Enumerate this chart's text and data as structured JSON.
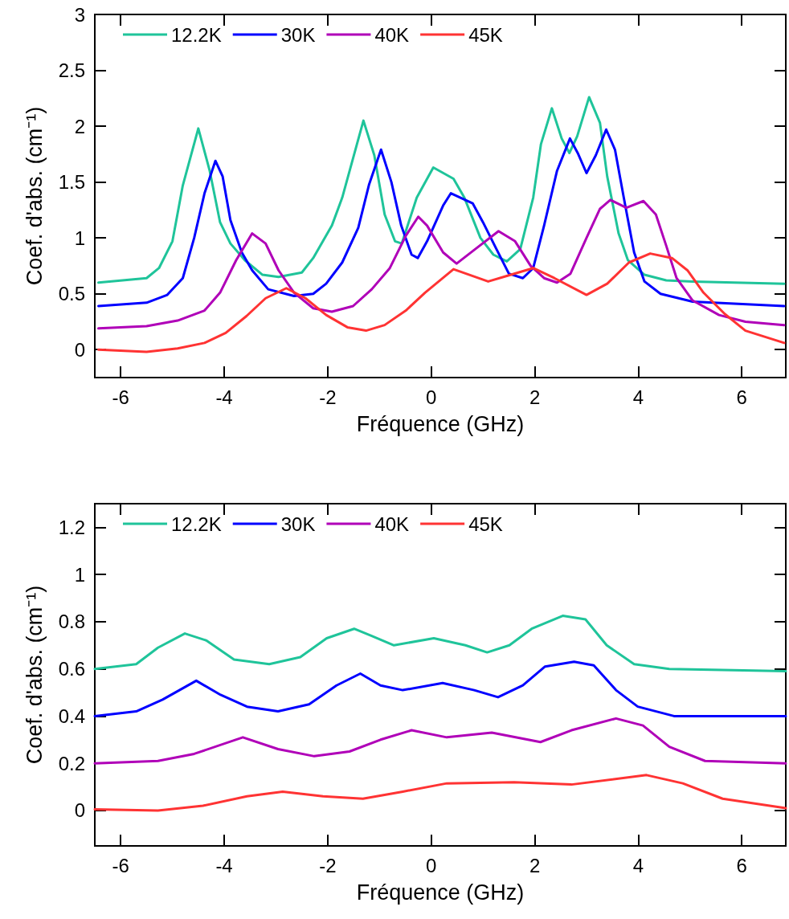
{
  "chart_data": [
    {
      "type": "line",
      "xlabel": "Fréquence (GHz)",
      "ylabel": "Coef. d'abs. (cm⁻¹)",
      "xlim": [
        -6.5,
        6.85
      ],
      "ylim": [
        -0.25,
        3
      ],
      "xticks": [
        -6,
        -4,
        -2,
        0,
        2,
        4,
        6
      ],
      "yticks": [
        0,
        0.5,
        1,
        1.5,
        2,
        2.5,
        3
      ],
      "legend": "top left",
      "grid": false,
      "marker": "none",
      "series": [
        {
          "name": "12.2K",
          "color": "#1fc49a",
          "x": [
            -6.43,
            -5.5,
            -5.26,
            -5.0,
            -4.8,
            -4.5,
            -4.28,
            -4.08,
            -3.88,
            -3.6,
            -3.26,
            -2.95,
            -2.5,
            -2.28,
            -1.92,
            -1.72,
            -1.31,
            -1.1,
            -0.9,
            -0.7,
            -0.57,
            -0.28,
            0.04,
            0.43,
            0.64,
            0.95,
            1.2,
            1.46,
            1.72,
            1.97,
            2.12,
            2.33,
            2.52,
            2.67,
            2.82,
            3.05,
            3.26,
            3.4,
            3.62,
            3.8,
            4.12,
            4.54,
            5.05,
            6.82
          ],
          "values": [
            0.6,
            0.64,
            0.73,
            0.97,
            1.47,
            1.98,
            1.6,
            1.14,
            0.95,
            0.8,
            0.67,
            0.65,
            0.69,
            0.82,
            1.11,
            1.36,
            2.05,
            1.74,
            1.21,
            0.97,
            0.95,
            1.36,
            1.63,
            1.53,
            1.36,
            1.0,
            0.85,
            0.79,
            0.9,
            1.36,
            1.84,
            2.16,
            1.89,
            1.76,
            1.91,
            2.26,
            2.03,
            1.55,
            1.04,
            0.8,
            0.67,
            0.62,
            0.61,
            0.59
          ]
        },
        {
          "name": "30K",
          "color": "#0000ff",
          "x": [
            -6.43,
            -5.5,
            -5.1,
            -4.8,
            -4.58,
            -4.38,
            -4.17,
            -4.03,
            -3.88,
            -3.66,
            -3.46,
            -3.15,
            -2.65,
            -2.28,
            -2.03,
            -1.72,
            -1.41,
            -1.2,
            -0.97,
            -0.77,
            -0.58,
            -0.38,
            -0.26,
            -0.08,
            0.23,
            0.38,
            0.8,
            1.0,
            1.26,
            1.5,
            1.77,
            1.97,
            2.18,
            2.43,
            2.68,
            2.83,
            3.0,
            3.18,
            3.38,
            3.55,
            3.72,
            3.92,
            4.12,
            4.43,
            5.05,
            6.82
          ],
          "values": [
            0.39,
            0.42,
            0.49,
            0.64,
            1.0,
            1.4,
            1.69,
            1.55,
            1.16,
            0.87,
            0.71,
            0.54,
            0.48,
            0.5,
            0.59,
            0.78,
            1.09,
            1.48,
            1.79,
            1.5,
            1.11,
            0.85,
            0.82,
            0.97,
            1.29,
            1.4,
            1.31,
            1.14,
            0.9,
            0.68,
            0.64,
            0.73,
            1.11,
            1.6,
            1.89,
            1.76,
            1.58,
            1.74,
            1.97,
            1.79,
            1.36,
            0.87,
            0.61,
            0.5,
            0.43,
            0.39
          ]
        },
        {
          "name": "40K",
          "color": "#b000b8",
          "x": [
            -6.43,
            -5.5,
            -4.9,
            -4.38,
            -4.08,
            -3.77,
            -3.46,
            -3.2,
            -2.95,
            -2.65,
            -2.28,
            -1.92,
            -1.51,
            -1.15,
            -0.8,
            -0.49,
            -0.25,
            -0.08,
            0.23,
            0.49,
            0.85,
            1.3,
            1.62,
            1.92,
            2.18,
            2.43,
            2.69,
            3.0,
            3.26,
            3.46,
            3.77,
            4.1,
            4.34,
            4.54,
            4.74,
            5.05,
            5.56,
            6.07,
            6.82
          ],
          "values": [
            0.19,
            0.21,
            0.26,
            0.35,
            0.51,
            0.8,
            1.04,
            0.95,
            0.71,
            0.51,
            0.37,
            0.34,
            0.39,
            0.54,
            0.73,
            1.02,
            1.19,
            1.11,
            0.87,
            0.77,
            0.9,
            1.06,
            0.97,
            0.75,
            0.64,
            0.6,
            0.68,
            1.0,
            1.26,
            1.34,
            1.27,
            1.33,
            1.21,
            0.93,
            0.64,
            0.44,
            0.31,
            0.25,
            0.22
          ]
        },
        {
          "name": "45K",
          "color": "#ff3333",
          "x": [
            -6.43,
            -5.5,
            -4.9,
            -4.38,
            -3.97,
            -3.57,
            -3.2,
            -2.8,
            -2.43,
            -2.03,
            -1.62,
            -1.26,
            -0.9,
            -0.49,
            -0.12,
            0.43,
            1.1,
            1.46,
            1.97,
            2.38,
            3.0,
            3.4,
            3.82,
            4.23,
            4.65,
            4.95,
            5.26,
            5.67,
            6.07,
            6.82
          ],
          "values": [
            0.0,
            -0.02,
            0.01,
            0.06,
            0.15,
            0.3,
            0.46,
            0.55,
            0.46,
            0.31,
            0.2,
            0.17,
            0.22,
            0.35,
            0.51,
            0.72,
            0.61,
            0.66,
            0.73,
            0.64,
            0.49,
            0.59,
            0.78,
            0.86,
            0.82,
            0.71,
            0.51,
            0.32,
            0.17,
            0.06
          ]
        }
      ]
    },
    {
      "type": "line",
      "xlabel": "Fréquence (GHz)",
      "ylabel": "Coef. d'abs. (cm⁻¹)",
      "xlim": [
        -6.5,
        6.85
      ],
      "ylim": [
        -0.15,
        1.3
      ],
      "xticks": [
        -6,
        -4,
        -2,
        0,
        2,
        4,
        6
      ],
      "yticks": [
        0,
        0.2,
        0.4,
        0.6,
        0.8,
        1,
        1.2
      ],
      "legend": "top left",
      "grid": false,
      "marker": "none",
      "series": [
        {
          "name": "12.2K",
          "color": "#1fc49a",
          "x": [
            -6.5,
            -5.7,
            -5.28,
            -4.76,
            -4.34,
            -3.81,
            -3.13,
            -2.53,
            -2.02,
            -1.49,
            -1.15,
            -0.72,
            0.05,
            0.66,
            1.08,
            1.51,
            1.94,
            2.54,
            2.98,
            3.39,
            3.92,
            4.6,
            6.85
          ],
          "values": [
            0.6,
            0.62,
            0.69,
            0.75,
            0.72,
            0.64,
            0.62,
            0.65,
            0.73,
            0.77,
            0.74,
            0.7,
            0.73,
            0.7,
            0.67,
            0.7,
            0.77,
            0.825,
            0.81,
            0.7,
            0.62,
            0.6,
            0.59
          ]
        },
        {
          "name": "30K",
          "color": "#0000ff",
          "x": [
            -6.5,
            -5.7,
            -5.19,
            -4.54,
            -4.07,
            -3.56,
            -2.96,
            -2.36,
            -1.83,
            -1.37,
            -0.98,
            -0.55,
            0.22,
            0.83,
            1.29,
            1.77,
            2.2,
            2.76,
            3.14,
            3.57,
            3.99,
            4.69,
            6.85
          ],
          "values": [
            0.4,
            0.42,
            0.47,
            0.55,
            0.49,
            0.44,
            0.42,
            0.45,
            0.53,
            0.58,
            0.53,
            0.51,
            0.54,
            0.51,
            0.48,
            0.53,
            0.61,
            0.63,
            0.615,
            0.51,
            0.44,
            0.4,
            0.4
          ]
        },
        {
          "name": "40K",
          "color": "#b000b8",
          "x": [
            -6.5,
            -5.28,
            -4.58,
            -3.64,
            -2.96,
            -2.26,
            -1.58,
            -0.98,
            -0.38,
            0.3,
            1.17,
            2.11,
            2.71,
            3.57,
            4.09,
            4.6,
            5.29,
            6.85
          ],
          "values": [
            0.2,
            0.21,
            0.24,
            0.31,
            0.26,
            0.23,
            0.25,
            0.3,
            0.34,
            0.31,
            0.33,
            0.29,
            0.34,
            0.39,
            0.36,
            0.27,
            0.21,
            0.2
          ]
        },
        {
          "name": "45K",
          "color": "#ff3333",
          "x": [
            -6.5,
            -5.28,
            -4.41,
            -3.56,
            -2.87,
            -2.09,
            -1.32,
            -0.55,
            0.3,
            1.6,
            2.71,
            4.16,
            4.86,
            5.63,
            6.85
          ],
          "values": [
            0.005,
            0.0,
            0.02,
            0.06,
            0.08,
            0.06,
            0.05,
            0.08,
            0.115,
            0.12,
            0.11,
            0.15,
            0.115,
            0.05,
            0.01
          ]
        }
      ]
    }
  ]
}
